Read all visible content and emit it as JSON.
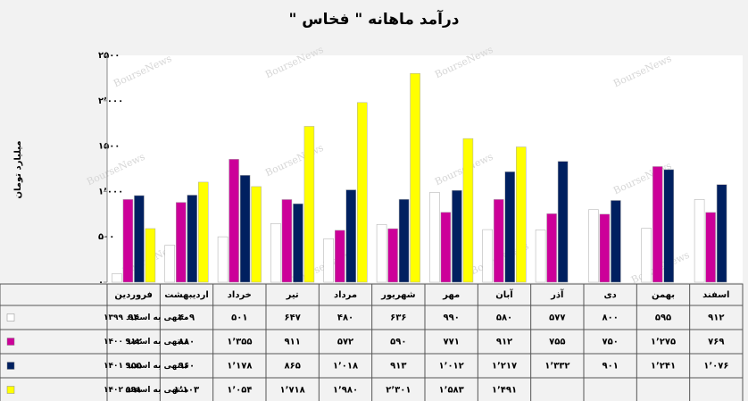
{
  "chart_data": {
    "type": "bar",
    "title": "درآمد ماهانه \" فخاس \"",
    "y_label": "میلیارد تومان",
    "watermark": "BourseNews",
    "categories": [
      "فروردین",
      "اردیبهشت",
      "خرداد",
      "تیر",
      "مرداد",
      "شهریور",
      "مهر",
      "آبان",
      "آذر",
      "دی",
      "بهمن",
      "اسفند"
    ],
    "series": [
      {
        "name": "منتهی به اسفند ۱۳۹۹",
        "color": "#ffffff",
        "values": [
          94,
          409,
          501,
          647,
          480,
          636,
          990,
          580,
          577,
          800,
          595,
          912
        ],
        "value_labels": [
          "۹۴",
          "۴۰۹",
          "۵۰۱",
          "۶۴۷",
          "۴۸۰",
          "۶۳۶",
          "۹۹۰",
          "۵۸۰",
          "۵۷۷",
          "۸۰۰",
          "۵۹۵",
          "۹۱۲"
        ]
      },
      {
        "name": "منتهی به اسفند ۱۴۰۰",
        "color": "#cc0099",
        "values": [
          912,
          880,
          1355,
          911,
          572,
          590,
          771,
          912,
          755,
          750,
          1275,
          769
        ],
        "value_labels": [
          "۹۱۲",
          "۸۸۰",
          "۱٬۳۵۵",
          "۹۱۱",
          "۵۷۲",
          "۵۹۰",
          "۷۷۱",
          "۹۱۲",
          "۷۵۵",
          "۷۵۰",
          "۱٬۲۷۵",
          "۷۶۹"
        ]
      },
      {
        "name": "منتهی به اسفند ۱۴۰۱",
        "color": "#002060",
        "values": [
          955,
          960,
          1178,
          865,
          1018,
          913,
          1012,
          1217,
          1332,
          901,
          1241,
          1076
        ],
        "value_labels": [
          "۹۵۵",
          "۹۶۰",
          "۱٬۱۷۸",
          "۸۶۵",
          "۱٬۰۱۸",
          "۹۱۳",
          "۱٬۰۱۲",
          "۱٬۲۱۷",
          "۱٬۳۳۲",
          "۹۰۱",
          "۱٬۲۴۱",
          "۱٬۰۷۶"
        ]
      },
      {
        "name": "منتهی به اسفند ۱۴۰۲",
        "color": "#ffff00",
        "values": [
          591,
          1103,
          1054,
          1718,
          1980,
          2301,
          1583,
          1491,
          null,
          null,
          null,
          null
        ],
        "value_labels": [
          "۵۹۱",
          "۱٬۱۰۳",
          "۱٬۰۵۴",
          "۱٬۷۱۸",
          "۱٬۹۸۰",
          "۲٬۳۰۱",
          "۱٬۵۸۳",
          "۱٬۴۹۱",
          null,
          null,
          null,
          null
        ]
      }
    ],
    "ylim": [
      0,
      2500
    ],
    "yticks": [
      {
        "value": 0,
        "label": "۰"
      },
      {
        "value": 500,
        "label": "۵۰۰"
      },
      {
        "value": 1000,
        "label": "۱٬۰۰۰"
      },
      {
        "value": 1500,
        "label": "۱۵۰۰"
      },
      {
        "value": 2000,
        "label": "۲٬۰۰۰"
      },
      {
        "value": 2500,
        "label": "۲۵۰۰"
      }
    ]
  }
}
